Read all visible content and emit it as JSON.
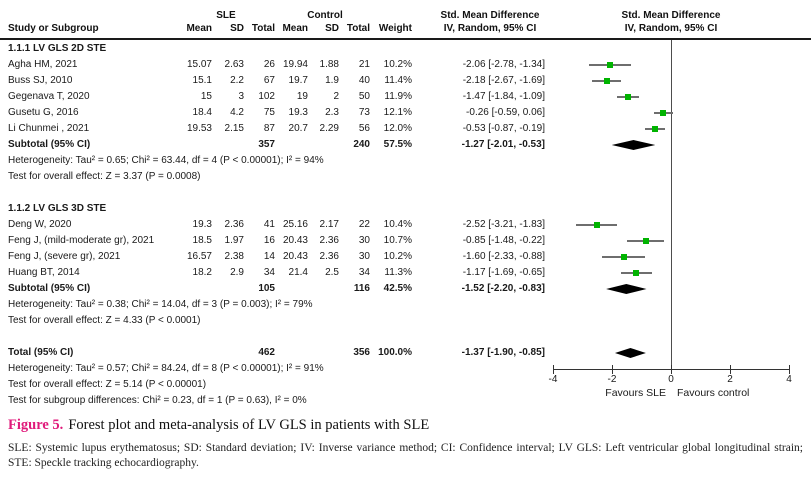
{
  "table_headers": {
    "study": "Study or Subgroup",
    "sle_group": "SLE",
    "control_group": "Control",
    "mean": "Mean",
    "sd": "SD",
    "total": "Total",
    "weight": "Weight",
    "smd_line1": "Std. Mean Difference",
    "smd_line2": "IV, Random, 95% CI"
  },
  "chart_data": {
    "type": "forest",
    "effect_measure": "Std. Mean Difference",
    "method": "IV, Random, 95% CI",
    "axis": {
      "min": -4,
      "max": 4,
      "ticks": [
        -4,
        -2,
        0,
        2,
        4
      ],
      "favours_left": "Favours SLE",
      "favours_right": "Favours control"
    },
    "rows": [
      {
        "kind": "heading",
        "label": "1.1.1 LV GLS 2D STE"
      },
      {
        "kind": "study",
        "label": "Agha HM, 2021",
        "cols": [
          "15.07",
          "2.63",
          "26",
          "19.94",
          "1.88",
          "21",
          "10.2%"
        ],
        "ci_text": "-2.06 [-2.78, -1.34]",
        "effect": -2.06,
        "lo": -2.78,
        "hi": -1.34
      },
      {
        "kind": "study",
        "label": "Buss SJ, 2010",
        "cols": [
          "15.1",
          "2.2",
          "67",
          "19.7",
          "1.9",
          "40",
          "11.4%"
        ],
        "ci_text": "-2.18 [-2.67, -1.69]",
        "effect": -2.18,
        "lo": -2.67,
        "hi": -1.69
      },
      {
        "kind": "study",
        "label": "Gegenava T, 2020",
        "cols": [
          "15",
          "3",
          "102",
          "19",
          "2",
          "50",
          "11.9%"
        ],
        "ci_text": "-1.47 [-1.84, -1.09]",
        "effect": -1.47,
        "lo": -1.84,
        "hi": -1.09
      },
      {
        "kind": "study",
        "label": "Gusetu G, 2016",
        "cols": [
          "18.4",
          "4.2",
          "75",
          "19.3",
          "2.3",
          "73",
          "12.1%"
        ],
        "ci_text": "-0.26 [-0.59, 0.06]",
        "effect": -0.26,
        "lo": -0.59,
        "hi": 0.06
      },
      {
        "kind": "study",
        "label": "Li Chunmei , 2021",
        "cols": [
          "19.53",
          "2.15",
          "87",
          "20.7",
          "2.29",
          "56",
          "12.0%"
        ],
        "ci_text": "-0.53 [-0.87, -0.19]",
        "effect": -0.53,
        "lo": -0.87,
        "hi": -0.19
      },
      {
        "kind": "subtotal",
        "label": "Subtotal (95% CI)",
        "cols": [
          "",
          "",
          "357",
          "",
          "",
          "240",
          "57.5%"
        ],
        "ci_text": "-1.27 [-2.01, -0.53]",
        "effect": -1.27,
        "lo": -2.01,
        "hi": -0.53
      },
      {
        "kind": "note",
        "label": "Heterogeneity: Tau² = 0.65; Chi² = 63.44, df = 4 (P < 0.00001); I² = 94%"
      },
      {
        "kind": "note",
        "label": "Test for overall effect: Z = 3.37 (P = 0.0008)"
      },
      {
        "kind": "blank",
        "label": ""
      },
      {
        "kind": "heading",
        "label": "1.1.2 LV GLS 3D STE"
      },
      {
        "kind": "study",
        "label": "Deng W, 2020",
        "cols": [
          "19.3",
          "2.36",
          "41",
          "25.16",
          "2.17",
          "22",
          "10.4%"
        ],
        "ci_text": "-2.52 [-3.21, -1.83]",
        "effect": -2.52,
        "lo": -3.21,
        "hi": -1.83
      },
      {
        "kind": "study",
        "label": "Feng J, (mild-moderate gr), 2021",
        "cols": [
          "18.5",
          "1.97",
          "16",
          "20.43",
          "2.36",
          "30",
          "10.7%"
        ],
        "ci_text": "-0.85 [-1.48, -0.22]",
        "effect": -0.85,
        "lo": -1.48,
        "hi": -0.22
      },
      {
        "kind": "study",
        "label": "Feng J, (severe gr), 2021",
        "cols": [
          "16.57",
          "2.38",
          "14",
          "20.43",
          "2.36",
          "30",
          "10.2%"
        ],
        "ci_text": "-1.60 [-2.33, -0.88]",
        "effect": -1.6,
        "lo": -2.33,
        "hi": -0.88
      },
      {
        "kind": "study",
        "label": "Huang BT, 2014",
        "cols": [
          "18.2",
          "2.9",
          "34",
          "21.4",
          "2.5",
          "34",
          "11.3%"
        ],
        "ci_text": "-1.17 [-1.69, -0.65]",
        "effect": -1.17,
        "lo": -1.69,
        "hi": -0.65
      },
      {
        "kind": "subtotal",
        "label": "Subtotal (95% CI)",
        "cols": [
          "",
          "",
          "105",
          "",
          "",
          "116",
          "42.5%"
        ],
        "ci_text": "-1.52 [-2.20, -0.83]",
        "effect": -1.52,
        "lo": -2.2,
        "hi": -0.83
      },
      {
        "kind": "note",
        "label": "Heterogeneity: Tau² = 0.38; Chi² = 14.04, df = 3 (P = 0.003); I² = 79%"
      },
      {
        "kind": "note",
        "label": "Test for overall effect: Z = 4.33 (P < 0.0001)"
      },
      {
        "kind": "blank",
        "label": ""
      },
      {
        "kind": "total",
        "label": "Total (95% CI)",
        "cols": [
          "",
          "",
          "462",
          "",
          "",
          "356",
          "100.0%"
        ],
        "ci_text": "-1.37 [-1.90, -0.85]",
        "effect": -1.37,
        "lo": -1.9,
        "hi": -0.85
      },
      {
        "kind": "note",
        "label": "Heterogeneity: Tau² = 0.57; Chi² = 84.24, df = 8 (P < 0.00001); I² = 91%"
      },
      {
        "kind": "note",
        "label": "Test for overall effect: Z = 5.14 (P < 0.00001)"
      },
      {
        "kind": "note",
        "label": "Test for subgroup differences: Chi² = 0.23, df = 1 (P = 0.63), I² = 0%"
      }
    ]
  },
  "caption": {
    "label": "Figure 5.",
    "text": "Forest plot and meta-analysis of LV GLS in patients with SLE"
  },
  "footnote": "SLE: Systemic lupus erythematosus; SD: Standard deviation; IV: Inverse variance method; CI: Confidence interval; LV GLS: Left ventricular global longitudinal strain; STE: Speckle tracking echocardiography.",
  "colors": {
    "marker_green": "#00b300",
    "diamond_black": "#000000",
    "ci_line_gray": "#6e6e6e",
    "caption_label_pink": "#e01a7b"
  }
}
